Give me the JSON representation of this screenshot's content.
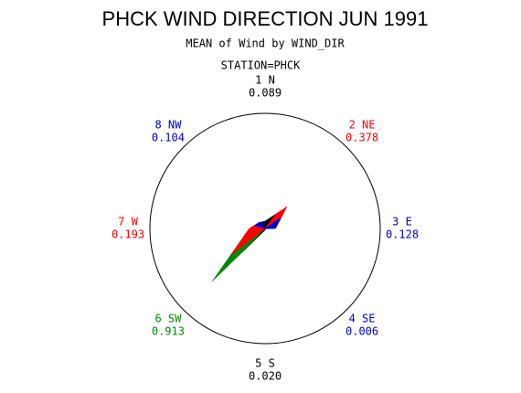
{
  "chart_data": {
    "type": "star",
    "title": "PHCK WIND DIRECTION JUN 1991",
    "subtitle": "MEAN of Wind by WIND_DIR",
    "group_label": "STATION=PHCK",
    "categories": [
      "1 N",
      "2 NE",
      "3 E",
      "4 SE",
      "5 S",
      "6 SW",
      "7 W",
      "8 NW"
    ],
    "values": [
      0.089,
      0.378,
      0.128,
      0.006,
      0.02,
      0.913,
      0.193,
      0.104
    ],
    "value_labels": [
      "0.089",
      "0.378",
      "0.128",
      "0.006",
      "0.020",
      "0.913",
      "0.193",
      "0.104"
    ],
    "colors": [
      "#000000",
      "#ff0000",
      "#0000cc",
      "#0000cc",
      "#000000",
      "#008800",
      "#ff0000",
      "#0000cc"
    ],
    "rlim": [
      0,
      1.4
    ]
  }
}
